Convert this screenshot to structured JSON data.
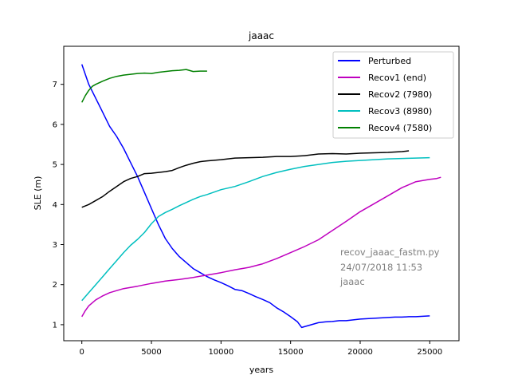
{
  "chart_data": {
    "type": "line",
    "title": "jaaac",
    "xlabel": "years",
    "ylabel": "SLE (m)",
    "xlim": [
      -1300,
      27100
    ],
    "ylim": [
      0.6,
      7.95
    ],
    "xticks": [
      0,
      5000,
      10000,
      15000,
      20000,
      25000
    ],
    "xtick_labels": [
      "0",
      "5000",
      "10000",
      "15000",
      "20000",
      "25000"
    ],
    "yticks": [
      1,
      2,
      3,
      4,
      5,
      6,
      7
    ],
    "ytick_labels": [
      "1",
      "2",
      "3",
      "4",
      "5",
      "6",
      "7"
    ],
    "grid": false,
    "legend_position": "top-right",
    "annotation_lines": [
      "recov_jaaac_fastm.py",
      "24/07/2018 11:53",
      "jaaac"
    ],
    "series": [
      {
        "name": "Perturbed",
        "color": "#0000ff",
        "x": [
          0,
          500,
          1000,
          1500,
          2000,
          2500,
          3000,
          3500,
          4000,
          4500,
          5000,
          5500,
          6000,
          6500,
          7000,
          7500,
          8000,
          8500,
          9000,
          9500,
          10000,
          10500,
          11000,
          11500,
          12000,
          12500,
          13000,
          13500,
          14000,
          14500,
          15000,
          15500,
          15800,
          16000,
          16500,
          17000,
          17500,
          18000,
          18500,
          19000,
          19500,
          20000,
          20500,
          21000,
          21500,
          22000,
          22500,
          23000,
          23500,
          24000,
          24500,
          25000
        ],
        "y": [
          7.5,
          7.0,
          6.65,
          6.3,
          5.95,
          5.7,
          5.4,
          5.05,
          4.7,
          4.3,
          3.9,
          3.5,
          3.15,
          2.9,
          2.7,
          2.55,
          2.4,
          2.3,
          2.2,
          2.12,
          2.05,
          1.97,
          1.88,
          1.85,
          1.78,
          1.7,
          1.63,
          1.55,
          1.42,
          1.32,
          1.2,
          1.07,
          0.93,
          0.95,
          1.0,
          1.05,
          1.07,
          1.08,
          1.1,
          1.1,
          1.12,
          1.14,
          1.15,
          1.16,
          1.17,
          1.18,
          1.19,
          1.19,
          1.2,
          1.2,
          1.21,
          1.22
        ]
      },
      {
        "name": "Recov1 (end)",
        "color": "#bf00bf",
        "x": [
          0,
          250,
          500,
          1000,
          1500,
          2000,
          2500,
          3000,
          3500,
          4000,
          5000,
          6000,
          7000,
          8000,
          9000,
          10000,
          11000,
          12000,
          13000,
          14000,
          15000,
          16000,
          17000,
          18000,
          19000,
          20000,
          21000,
          22000,
          23000,
          24000,
          24500,
          25000,
          25500,
          25800
        ],
        "y": [
          1.2,
          1.35,
          1.47,
          1.62,
          1.72,
          1.8,
          1.85,
          1.9,
          1.93,
          1.96,
          2.03,
          2.09,
          2.13,
          2.18,
          2.24,
          2.3,
          2.37,
          2.43,
          2.52,
          2.65,
          2.8,
          2.95,
          3.12,
          3.35,
          3.58,
          3.82,
          4.02,
          4.22,
          4.42,
          4.57,
          4.6,
          4.63,
          4.65,
          4.68
        ]
      },
      {
        "name": "Recov2 (7980)",
        "color": "#000000",
        "x": [
          0,
          500,
          1000,
          1500,
          2000,
          2500,
          3000,
          3500,
          4000,
          4500,
          5000,
          5500,
          6000,
          6500,
          7000,
          7500,
          8000,
          8500,
          9000,
          10000,
          11000,
          12000,
          13000,
          14000,
          15000,
          16000,
          17000,
          18000,
          19000,
          20000,
          21000,
          22000,
          23000,
          23500
        ],
        "y": [
          3.93,
          4.0,
          4.1,
          4.2,
          4.33,
          4.45,
          4.57,
          4.65,
          4.7,
          4.77,
          4.78,
          4.8,
          4.82,
          4.85,
          4.92,
          4.98,
          5.03,
          5.07,
          5.09,
          5.12,
          5.16,
          5.17,
          5.18,
          5.2,
          5.2,
          5.22,
          5.26,
          5.27,
          5.26,
          5.28,
          5.29,
          5.3,
          5.32,
          5.34
        ]
      },
      {
        "name": "Recov3 (8980)",
        "color": "#00bfbf",
        "x": [
          0,
          500,
          1000,
          1500,
          2000,
          2500,
          3000,
          3500,
          4000,
          4500,
          5000,
          5500,
          6000,
          6500,
          7000,
          7500,
          8000,
          8500,
          9000,
          10000,
          11000,
          12000,
          13000,
          14000,
          15000,
          16000,
          17000,
          18000,
          19000,
          20000,
          21000,
          22000,
          23000,
          24000,
          25000
        ],
        "y": [
          1.6,
          1.8,
          2.0,
          2.2,
          2.4,
          2.6,
          2.8,
          2.98,
          3.13,
          3.3,
          3.52,
          3.7,
          3.8,
          3.88,
          3.97,
          4.05,
          4.13,
          4.2,
          4.25,
          4.37,
          4.45,
          4.57,
          4.7,
          4.8,
          4.88,
          4.95,
          5.0,
          5.05,
          5.08,
          5.1,
          5.12,
          5.14,
          5.15,
          5.16,
          5.17
        ]
      },
      {
        "name": "Recov4 (7580)",
        "color": "#008000",
        "x": [
          0,
          250,
          500,
          750,
          1000,
          1500,
          2000,
          2500,
          3000,
          3500,
          4000,
          4500,
          5000,
          5500,
          6000,
          6500,
          7000,
          7500,
          8000,
          8500,
          9000
        ],
        "y": [
          6.55,
          6.72,
          6.85,
          6.95,
          7.0,
          7.08,
          7.15,
          7.2,
          7.23,
          7.25,
          7.27,
          7.28,
          7.27,
          7.3,
          7.32,
          7.34,
          7.35,
          7.37,
          7.32,
          7.33,
          7.33
        ]
      }
    ]
  }
}
